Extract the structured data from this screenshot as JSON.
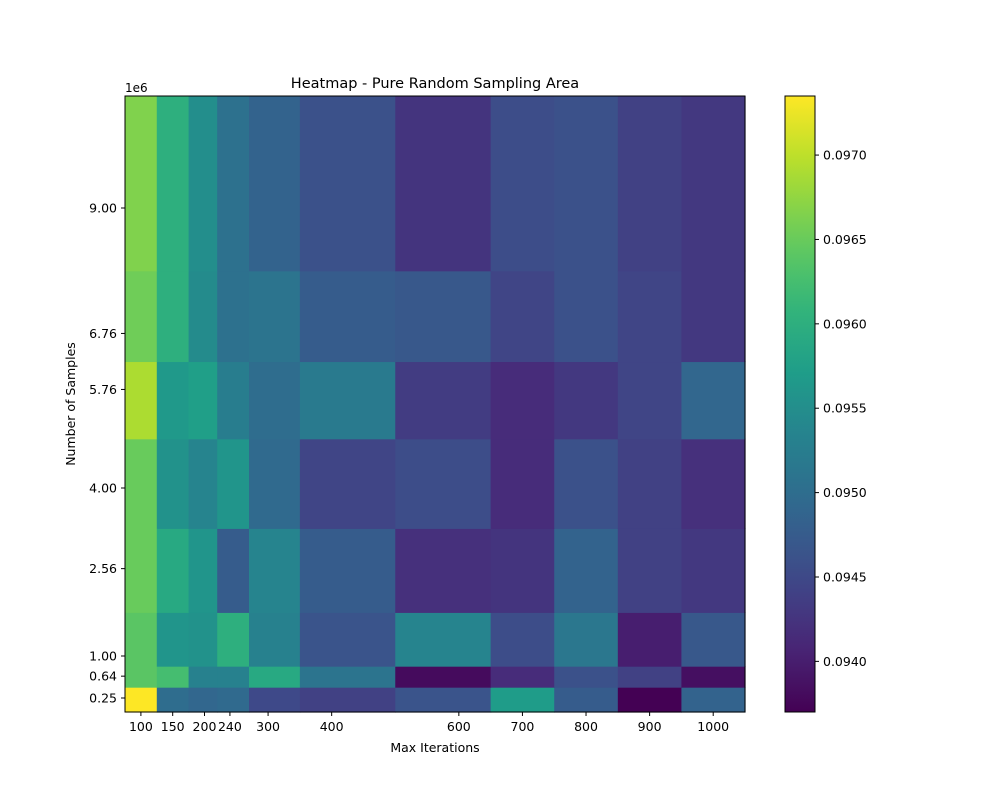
{
  "chart_data": {
    "type": "heatmap",
    "title": "Heatmap - Pure Random Sampling Area",
    "xlabel": "Max Iterations",
    "ylabel": "Number of Samples",
    "y_scale_label": "1e6",
    "x_ticks": [
      100,
      150,
      200,
      240,
      300,
      400,
      600,
      700,
      800,
      900,
      1000
    ],
    "x_tick_labels": [
      "100",
      "150",
      "200",
      "240",
      "300",
      "400",
      "600",
      "700",
      "800",
      "900",
      "1000"
    ],
    "y_ticks": [
      0.25,
      0.64,
      1.0,
      2.56,
      4.0,
      5.76,
      6.76,
      9.0
    ],
    "y_tick_labels": [
      "0.25",
      "0.64",
      "1.00",
      "2.56",
      "4.00",
      "5.76",
      "6.76",
      "9.00"
    ],
    "x_edges": [
      75,
      125,
      175,
      220,
      270,
      350,
      500,
      650,
      750,
      850,
      950,
      1050
    ],
    "y_edges": [
      0.0,
      0.445,
      0.82,
      1.78,
      3.28,
      4.88,
      6.26,
      7.88,
      11.0
    ],
    "x_range": [
      75,
      1050
    ],
    "y_range": [
      0.0,
      11.0
    ],
    "values": [
      [
        0.09735,
        0.095,
        0.0949,
        0.09495,
        0.0945,
        0.0944,
        0.09465,
        0.0957,
        0.09475,
        0.0937,
        0.09485
      ],
      [
        0.0964,
        0.09625,
        0.0953,
        0.0953,
        0.0959,
        0.0951,
        0.0938,
        0.09415,
        0.0946,
        0.0944,
        0.09385
      ],
      [
        0.0964,
        0.0956,
        0.09555,
        0.096,
        0.0953,
        0.09465,
        0.09535,
        0.09455,
        0.09515,
        0.094,
        0.0947
      ],
      [
        0.0965,
        0.0959,
        0.0956,
        0.09475,
        0.09535,
        0.09475,
        0.0942,
        0.09425,
        0.09485,
        0.0944,
        0.0943
      ],
      [
        0.0965,
        0.09555,
        0.09535,
        0.0956,
        0.09495,
        0.09445,
        0.09455,
        0.09415,
        0.0946,
        0.0944,
        0.0942
      ],
      [
        0.0969,
        0.09565,
        0.09575,
        0.09525,
        0.095,
        0.0952,
        0.09435,
        0.09415,
        0.0943,
        0.09445,
        0.0949
      ],
      [
        0.09655,
        0.096,
        0.09545,
        0.09505,
        0.0951,
        0.09475,
        0.0947,
        0.09445,
        0.0946,
        0.09445,
        0.0943
      ],
      [
        0.09665,
        0.096,
        0.0955,
        0.09505,
        0.09485,
        0.0946,
        0.09425,
        0.09455,
        0.0946,
        0.0944,
        0.0943
      ]
    ],
    "colorbar": {
      "colormap": "viridis",
      "vmin": 0.0937,
      "vmax": 0.09735,
      "ticks": [
        0.094,
        0.0945,
        0.095,
        0.0955,
        0.096,
        0.0965,
        0.097
      ],
      "tick_labels": [
        "0.0940",
        "0.0945",
        "0.0950",
        "0.0955",
        "0.0960",
        "0.0965",
        "0.0970"
      ]
    }
  }
}
